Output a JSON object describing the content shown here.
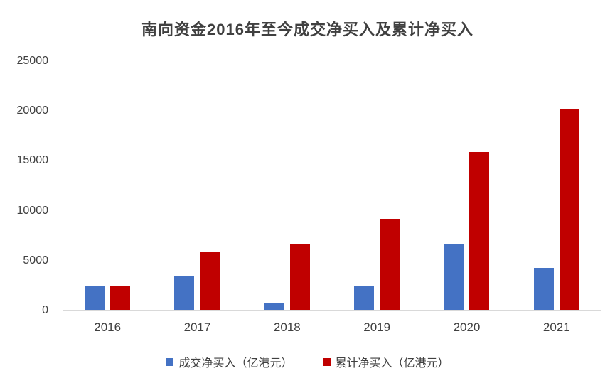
{
  "page": {
    "background": "#ffffff",
    "text_color": "#404040",
    "axis_line_color": "#d9d9d9"
  },
  "chart_data": {
    "type": "bar",
    "title": "南向资金2016年至今成交净买入及累计净买入",
    "categories": [
      "2016",
      "2017",
      "2018",
      "2019",
      "2020",
      "2021"
    ],
    "series": [
      {
        "key": "net-buy",
        "name": "成交净买入（亿港元）",
        "color": "#4472C4",
        "values": [
          2500,
          3400,
          800,
          2500,
          6700,
          4300
        ]
      },
      {
        "key": "cumulative",
        "name": "累计净买入（亿港元）",
        "color": "#C00000",
        "values": [
          2500,
          5900,
          6700,
          9200,
          15900,
          20200
        ]
      }
    ],
    "xlabel": "",
    "ylabel": "",
    "ylim": [
      0,
      25000
    ],
    "yticks": [
      0,
      5000,
      10000,
      15000,
      20000,
      25000
    ],
    "grid": false,
    "legend_position": "bottom"
  }
}
